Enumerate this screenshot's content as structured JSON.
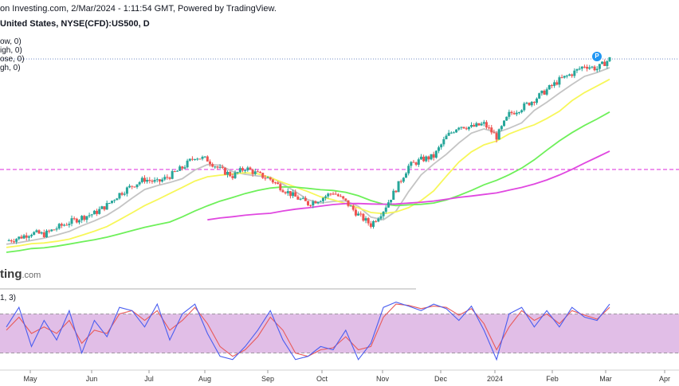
{
  "header": {
    "line1": "on Investing.com, 2/Mar/2024 - 1:11:54 GMT, Powered by TradingView.",
    "line2": "United States, NYSE(CFD):US500, D"
  },
  "legend_fragments": [
    "ow, 0)",
    "igh, 0)",
    "ose, 0)",
    "gh, 0)"
  ],
  "watermark": {
    "main": "ting",
    "suffix": ".com"
  },
  "stochastic_label": "1, 3)",
  "badge_letter": "P",
  "colors": {
    "bull": "#26a69a",
    "bear": "#ef5350",
    "ma_gray": "#c4c4c4",
    "ma_yellow": "#f7f75a",
    "ma_green": "#6ef05a",
    "ma_magenta": "#e048e0",
    "level_line": "#e040e0",
    "stoch_k": "#4a5ef0",
    "stoch_d": "#e85a5a",
    "stoch_band": "#e1bee7"
  },
  "chart_data": {
    "type": "candlestick",
    "x_axis": {
      "labels": [
        "May",
        "Jun",
        "Jul",
        "Aug",
        "Sep",
        "Oct",
        "Nov",
        "Dec",
        "2024",
        "Feb",
        "Mar",
        "Apr"
      ]
    },
    "price": [
      4060,
      4080,
      4110,
      4100,
      4140,
      4175,
      4205,
      4230,
      4280,
      4350,
      4400,
      4440,
      4420,
      4460,
      4510,
      4580,
      4560,
      4500,
      4460,
      4510,
      4470,
      4440,
      4380,
      4330,
      4290,
      4320,
      4360,
      4300,
      4220,
      4160,
      4250,
      4380,
      4520,
      4560,
      4580,
      4700,
      4770,
      4760,
      4780,
      4700,
      4840,
      4880,
      4930,
      4990,
      5050,
      5090,
      5140,
      5120,
      5180
    ],
    "moving_averages": [
      "gray",
      "yellow",
      "green",
      "magenta"
    ],
    "horizontal_level": 4500,
    "stochastic": {
      "k": [
        60,
        90,
        30,
        70,
        40,
        85,
        20,
        70,
        45,
        90,
        85,
        60,
        95,
        40,
        80,
        95,
        50,
        15,
        10,
        30,
        55,
        85,
        40,
        10,
        15,
        30,
        25,
        55,
        10,
        35,
        90,
        98,
        92,
        85,
        95,
        88,
        70,
        92,
        55,
        10,
        80,
        90,
        60,
        85,
        60,
        90,
        75,
        70,
        95
      ],
      "d": [
        55,
        75,
        50,
        60,
        50,
        70,
        35,
        55,
        50,
        80,
        85,
        70,
        85,
        55,
        70,
        90,
        65,
        30,
        15,
        25,
        45,
        75,
        55,
        20,
        15,
        25,
        28,
        45,
        25,
        30,
        75,
        95,
        93,
        88,
        92,
        90,
        78,
        88,
        65,
        25,
        60,
        85,
        70,
        80,
        65,
        85,
        78,
        72,
        90
      ],
      "upper": 80,
      "lower": 20
    }
  }
}
